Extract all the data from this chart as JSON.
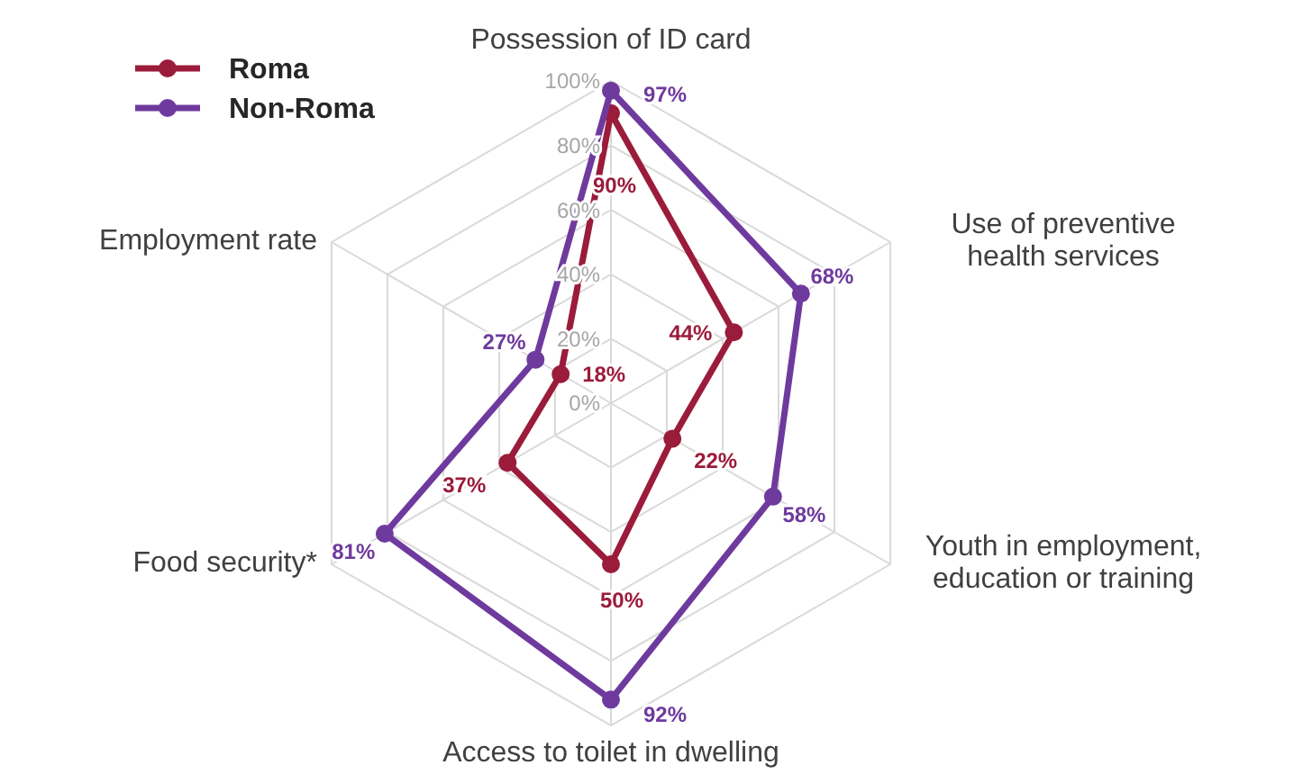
{
  "chart_data": {
    "type": "radar",
    "categories": [
      "Possession of ID card",
      "Use of preventive health services",
      "Youth in employment, education or training",
      "Access to toilet in dwelling",
      "Food security*",
      "Employment rate"
    ],
    "series": [
      {
        "name": "Roma",
        "color": "#9b1b3a",
        "values": [
          90,
          44,
          22,
          50,
          37,
          18
        ],
        "value_labels": [
          "90%",
          "44%",
          "22%",
          "50%",
          "37%",
          "18%"
        ]
      },
      {
        "name": "Non-Roma",
        "color": "#6f3a9e",
        "values": [
          97,
          68,
          58,
          92,
          81,
          27
        ],
        "value_labels": [
          "97%",
          "68%",
          "58%",
          "92%",
          "81%",
          "27%"
        ]
      }
    ],
    "ylim": [
      0,
      100
    ],
    "yticks": [
      {
        "value": 0,
        "label": "0%"
      },
      {
        "value": 20,
        "label": "20%"
      },
      {
        "value": 40,
        "label": "40%"
      },
      {
        "value": 60,
        "label": "60%"
      },
      {
        "value": 80,
        "label": "80%"
      },
      {
        "value": 100,
        "label": "100%"
      }
    ],
    "grid": true,
    "legend": "top left",
    "marker": "circle",
    "line_style": "solid"
  }
}
